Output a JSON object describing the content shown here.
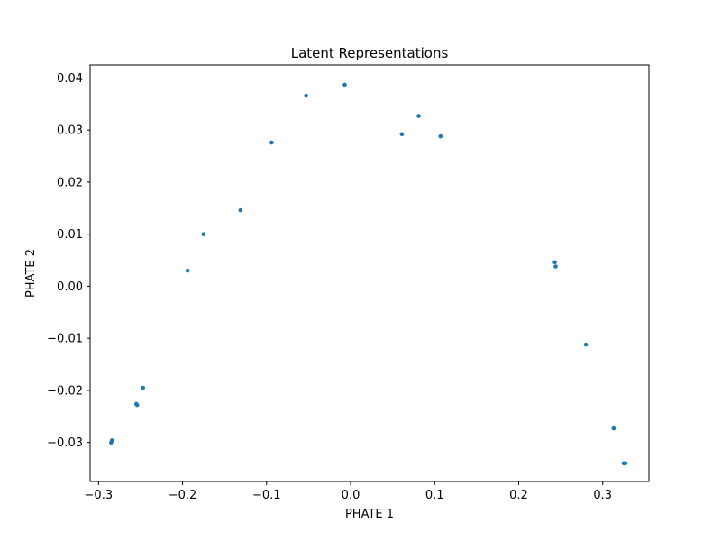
{
  "chart_data": {
    "type": "scatter",
    "title": "Latent Representations",
    "xlabel": "PHATE 1",
    "ylabel": "PHATE 2",
    "xlim": [
      -0.31,
      0.355
    ],
    "ylim": [
      -0.0375,
      0.0425
    ],
    "xticks": [
      -0.3,
      -0.2,
      -0.1,
      0.0,
      0.1,
      0.2,
      0.3
    ],
    "xtick_labels": [
      "−0.3",
      "−0.2",
      "−0.1",
      "0.0",
      "0.1",
      "0.2",
      "0.3"
    ],
    "yticks": [
      -0.03,
      -0.02,
      -0.01,
      0.0,
      0.01,
      0.02,
      0.03,
      0.04
    ],
    "ytick_labels": [
      "−0.03",
      "−0.02",
      "−0.01",
      "0.00",
      "0.01",
      "0.02",
      "0.03",
      "0.04"
    ],
    "grid": false,
    "color": "#1f77b4",
    "series": [
      {
        "x": [
          -0.285,
          -0.284,
          -0.255,
          -0.254,
          -0.247,
          -0.194,
          -0.175,
          -0.131,
          -0.094,
          -0.053,
          -0.007,
          0.061,
          0.081,
          0.107,
          0.243,
          0.244,
          0.28,
          0.313,
          0.325,
          0.327
        ],
        "y": [
          -0.03,
          -0.0296,
          -0.0226,
          -0.0228,
          -0.0195,
          0.003,
          0.01,
          0.0146,
          0.0276,
          0.0366,
          0.0387,
          0.0292,
          0.0327,
          0.0288,
          0.0046,
          0.0038,
          -0.0112,
          -0.0273,
          -0.034,
          -0.034
        ]
      }
    ]
  }
}
